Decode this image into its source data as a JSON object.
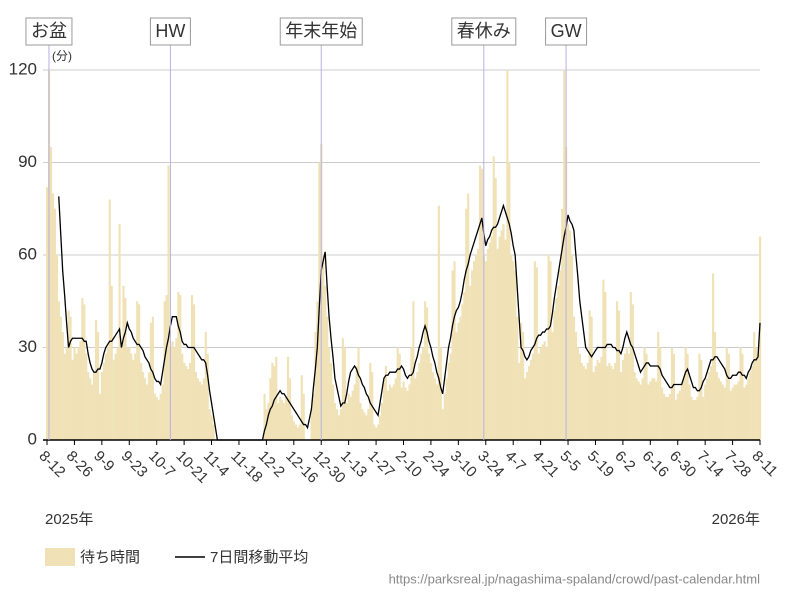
{
  "chart_data": {
    "type": "bar",
    "y_unit": "(分)",
    "year_start": "2025年",
    "year_end": "2026年",
    "source": "https://parksreal.jp/nagashima-spaland/crowd/past-calendar.html",
    "ylim": [
      0,
      120
    ],
    "yticks": [
      0,
      30,
      60,
      90,
      120
    ],
    "grid": true,
    "annotations": [
      {
        "text": "お盆",
        "index": 1
      },
      {
        "text": "HW",
        "index": 63
      },
      {
        "text": "年末年始",
        "index": 140
      },
      {
        "text": "春休み",
        "index": 223
      },
      {
        "text": "GW",
        "index": 265
      }
    ],
    "categories": [
      "8-12",
      null,
      null,
      null,
      null,
      null,
      null,
      null,
      null,
      null,
      null,
      null,
      null,
      null,
      "8-26",
      null,
      null,
      null,
      null,
      null,
      null,
      null,
      null,
      null,
      null,
      null,
      null,
      null,
      "9-9",
      null,
      null,
      null,
      null,
      null,
      null,
      null,
      null,
      null,
      null,
      null,
      null,
      null,
      "9-23",
      null,
      null,
      null,
      null,
      null,
      null,
      null,
      null,
      null,
      null,
      null,
      null,
      null,
      "10-7",
      null,
      null,
      null,
      null,
      null,
      null,
      null,
      null,
      null,
      null,
      null,
      null,
      null,
      "10-21",
      null,
      null,
      null,
      null,
      null,
      null,
      null,
      null,
      null,
      null,
      null,
      null,
      null,
      "11-4",
      null,
      null,
      null,
      null,
      null,
      null,
      null,
      null,
      null,
      null,
      null,
      null,
      null,
      "11-18",
      null,
      null,
      null,
      null,
      null,
      null,
      null,
      null,
      null,
      null,
      null,
      null,
      null,
      "12-2",
      null,
      null,
      null,
      null,
      null,
      null,
      null,
      null,
      null,
      null,
      null,
      null,
      null,
      "12-16",
      null,
      null,
      null,
      null,
      null,
      null,
      null,
      null,
      null,
      null,
      null,
      null,
      null,
      "12-30",
      null,
      null,
      null,
      null,
      null,
      null,
      null,
      null,
      null,
      null,
      null,
      null,
      null,
      "1-13",
      null,
      null,
      null,
      null,
      null,
      null,
      null,
      null,
      null,
      null,
      null,
      null,
      null,
      "1-27",
      null,
      null,
      null,
      null,
      null,
      null,
      null,
      null,
      null,
      null,
      null,
      null,
      null,
      "2-10",
      null,
      null,
      null,
      null,
      null,
      null,
      null,
      null,
      null,
      null,
      null,
      null,
      null,
      "2-24",
      null,
      null,
      null,
      null,
      null,
      null,
      null,
      null,
      null,
      null,
      null,
      null,
      null,
      "3-10",
      null,
      null,
      null,
      null,
      null,
      null,
      null,
      null,
      null,
      null,
      null,
      null,
      null,
      "3-24",
      null,
      null,
      null,
      null,
      null,
      null,
      null,
      null,
      null,
      null,
      null,
      null,
      null,
      "4-7",
      null,
      null,
      null,
      null,
      null,
      null,
      null,
      null,
      null,
      null,
      null,
      null,
      null,
      "4-21",
      null,
      null,
      null,
      null,
      null,
      null,
      null,
      null,
      null,
      null,
      null,
      null,
      null,
      "5-5",
      null,
      null,
      null,
      null,
      null,
      null,
      null,
      null,
      null,
      null,
      null,
      null,
      null,
      "5-19",
      null,
      null,
      null,
      null,
      null,
      null,
      null,
      null,
      null,
      null,
      null,
      null,
      null,
      "6-2",
      null,
      null,
      null,
      null,
      null,
      null,
      null,
      null,
      null,
      null,
      null,
      null,
      null,
      "6-16",
      null,
      null,
      null,
      null,
      null,
      null,
      null,
      null,
      null,
      null,
      null,
      null,
      null,
      "6-30",
      null,
      null,
      null,
      null,
      null,
      null,
      null,
      null,
      null,
      null,
      null,
      null,
      null,
      "7-14",
      null,
      null,
      null,
      null,
      null,
      null,
      null,
      null,
      null,
      null,
      null,
      null,
      null,
      "7-28",
      null,
      null,
      null,
      null,
      null,
      null,
      null,
      null,
      null,
      null,
      null,
      null,
      null,
      "8-11"
    ],
    "series": [
      {
        "name": "待ち時間",
        "type": "bar",
        "color": "#f0e2b6",
        "values": [
          82,
          120,
          95,
          80,
          75,
          60,
          45,
          40,
          35,
          28,
          30,
          42,
          40,
          26,
          30,
          28,
          30,
          32,
          46,
          44,
          28,
          22,
          20,
          18,
          22,
          39,
          35,
          15,
          22,
          25,
          28,
          30,
          78,
          50,
          26,
          28,
          30,
          70,
          32,
          50,
          46,
          30,
          30,
          28,
          26,
          28,
          45,
          44,
          25,
          22,
          20,
          18,
          22,
          38,
          40,
          15,
          14,
          13,
          15,
          18,
          45,
          47,
          89,
          30,
          32,
          30,
          33,
          48,
          47,
          28,
          25,
          24,
          23,
          25,
          47,
          44,
          22,
          20,
          19,
          18,
          20,
          35,
          28,
          10,
          8,
          5,
          0,
          0,
          0,
          0,
          0,
          0,
          0,
          0,
          0,
          0,
          0,
          0,
          0,
          0,
          0,
          0,
          0,
          0,
          0,
          0,
          0,
          0,
          0,
          0,
          0,
          15,
          10,
          12,
          20,
          25,
          24,
          27,
          12,
          14,
          13,
          12,
          14,
          27,
          20,
          8,
          6,
          5,
          4,
          5,
          21,
          15,
          0,
          0,
          0,
          10,
          15,
          35,
          45,
          90,
          96,
          60,
          50,
          40,
          30,
          25,
          18,
          12,
          10,
          8,
          10,
          33,
          30,
          12,
          15,
          14,
          16,
          18,
          24,
          30,
          12,
          10,
          9,
          8,
          10,
          25,
          22,
          5,
          4,
          5,
          8,
          12,
          20,
          24,
          16,
          18,
          17,
          18,
          20,
          30,
          28,
          17,
          19,
          17,
          16,
          18,
          30,
          45,
          20,
          22,
          25,
          28,
          30,
          45,
          43,
          28,
          25,
          22,
          20,
          18,
          76,
          30,
          10,
          15,
          20,
          25,
          28,
          55,
          58,
          35,
          38,
          40,
          44,
          48,
          75,
          80,
          50,
          55,
          58,
          60,
          62,
          89,
          88,
          60,
          58,
          62,
          64,
          66,
          92,
          85,
          62,
          66,
          68,
          70,
          65,
          120,
          90,
          60,
          58,
          55,
          40,
          25,
          38,
          35,
          20,
          22,
          24,
          26,
          28,
          58,
          56,
          28,
          30,
          31,
          32,
          30,
          60,
          58,
          35,
          42,
          46,
          50,
          55,
          75,
          120,
          95,
          70,
          68,
          60,
          40,
          35,
          30,
          28,
          25,
          24,
          23,
          25,
          42,
          40,
          22,
          24,
          26,
          25,
          27,
          52,
          48,
          24,
          25,
          24,
          23,
          25,
          45,
          42,
          22,
          26,
          28,
          30,
          28,
          48,
          44,
          22,
          20,
          19,
          18,
          20,
          30,
          28,
          18,
          19,
          20,
          20,
          19,
          35,
          30,
          17,
          15,
          14,
          14,
          15,
          30,
          28,
          13,
          15,
          16,
          18,
          20,
          30,
          28,
          18,
          14,
          13,
          13,
          14,
          28,
          26,
          14,
          18,
          20,
          22,
          24,
          54,
          35,
          22,
          20,
          19,
          18,
          17,
          30,
          28,
          16,
          17,
          18,
          18,
          19,
          30,
          28,
          17,
          18,
          20,
          22,
          24,
          35,
          30,
          28,
          66
        ]
      },
      {
        "name": "7日間移動平均",
        "type": "line",
        "color": "#000000",
        "values": [
          null,
          null,
          null,
          null,
          null,
          null,
          79,
          67,
          55,
          47,
          38,
          30,
          32,
          33,
          33,
          33,
          33,
          33,
          33,
          32,
          32,
          28,
          25,
          23,
          22,
          22,
          23,
          23,
          25,
          28,
          30,
          31,
          32,
          32,
          33,
          34,
          35,
          36,
          30,
          33,
          35,
          38,
          36,
          35,
          33,
          32,
          31,
          31,
          30,
          29,
          27,
          26,
          25,
          23,
          22,
          20,
          19,
          19,
          18,
          22,
          26,
          30,
          33,
          37,
          40,
          40,
          40,
          37,
          35,
          32,
          31,
          31,
          30,
          30,
          30,
          30,
          29,
          28,
          27,
          26,
          26,
          25,
          21,
          16,
          12,
          8,
          4,
          0,
          0,
          0,
          0,
          0,
          0,
          0,
          0,
          0,
          0,
          0,
          0,
          0,
          0,
          0,
          0,
          0,
          0,
          0,
          0,
          0,
          0,
          0,
          0,
          3,
          5,
          8,
          10,
          11,
          13,
          14,
          15,
          16,
          15,
          15,
          14,
          13,
          12,
          11,
          10,
          9,
          8,
          7,
          6,
          5,
          5,
          4,
          7,
          10,
          17,
          23,
          30,
          43,
          55,
          58,
          61,
          50,
          40,
          33,
          27,
          20,
          17,
          14,
          11,
          12,
          12,
          15,
          19,
          22,
          23,
          24,
          23,
          21,
          20,
          18,
          17,
          15,
          14,
          12,
          11,
          10,
          9,
          8,
          12,
          16,
          20,
          21,
          21,
          22,
          22,
          22,
          22,
          23,
          23,
          24,
          23,
          21,
          20,
          21,
          21,
          22,
          25,
          27,
          30,
          32,
          35,
          37,
          35,
          32,
          30,
          27,
          25,
          22,
          20,
          17,
          15,
          20,
          25,
          30,
          33,
          37,
          40,
          42,
          43,
          45,
          48,
          52,
          55,
          57,
          60,
          62,
          64,
          66,
          68,
          70,
          72,
          67,
          63,
          65,
          66,
          68,
          69,
          69,
          70,
          72,
          74,
          76,
          74,
          72,
          70,
          67,
          63,
          60,
          50,
          40,
          30,
          29,
          27,
          26,
          27,
          29,
          30,
          31,
          33,
          34,
          34,
          35,
          35,
          36,
          36,
          37,
          41,
          46,
          50,
          54,
          58,
          62,
          66,
          69,
          73,
          71,
          70,
          68,
          60,
          53,
          45,
          40,
          35,
          30,
          29,
          28,
          27,
          28,
          29,
          30,
          30,
          30,
          30,
          30,
          31,
          31,
          31,
          30,
          30,
          29,
          29,
          28,
          30,
          33,
          35,
          33,
          31,
          30,
          28,
          26,
          24,
          22,
          23,
          24,
          25,
          25,
          24,
          24,
          24,
          24,
          24,
          23,
          21,
          20,
          19,
          18,
          17,
          17,
          18,
          18,
          18,
          18,
          18,
          20,
          22,
          23,
          21,
          19,
          17,
          17,
          16,
          16,
          17,
          19,
          20,
          22,
          24,
          26,
          26,
          27,
          27,
          26,
          25,
          24,
          23,
          21,
          20,
          20,
          21,
          21,
          21,
          22,
          22,
          21,
          21,
          20,
          22,
          23,
          25,
          26,
          26,
          27,
          38
        ]
      }
    ]
  }
}
